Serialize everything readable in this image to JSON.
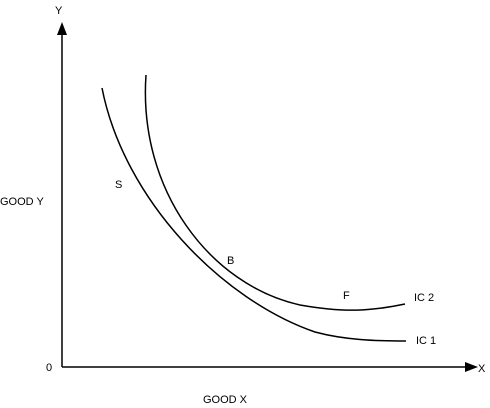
{
  "diagram": {
    "y_axis_letter": "Y",
    "x_axis_letter": "X",
    "y_axis_title": "GOOD Y",
    "x_axis_title": "GOOD X",
    "origin_label": "0",
    "points": {
      "s": "S",
      "b": "B",
      "f": "F"
    },
    "curves": {
      "ic1": "IC 1",
      "ic2": "IC 2"
    }
  }
}
